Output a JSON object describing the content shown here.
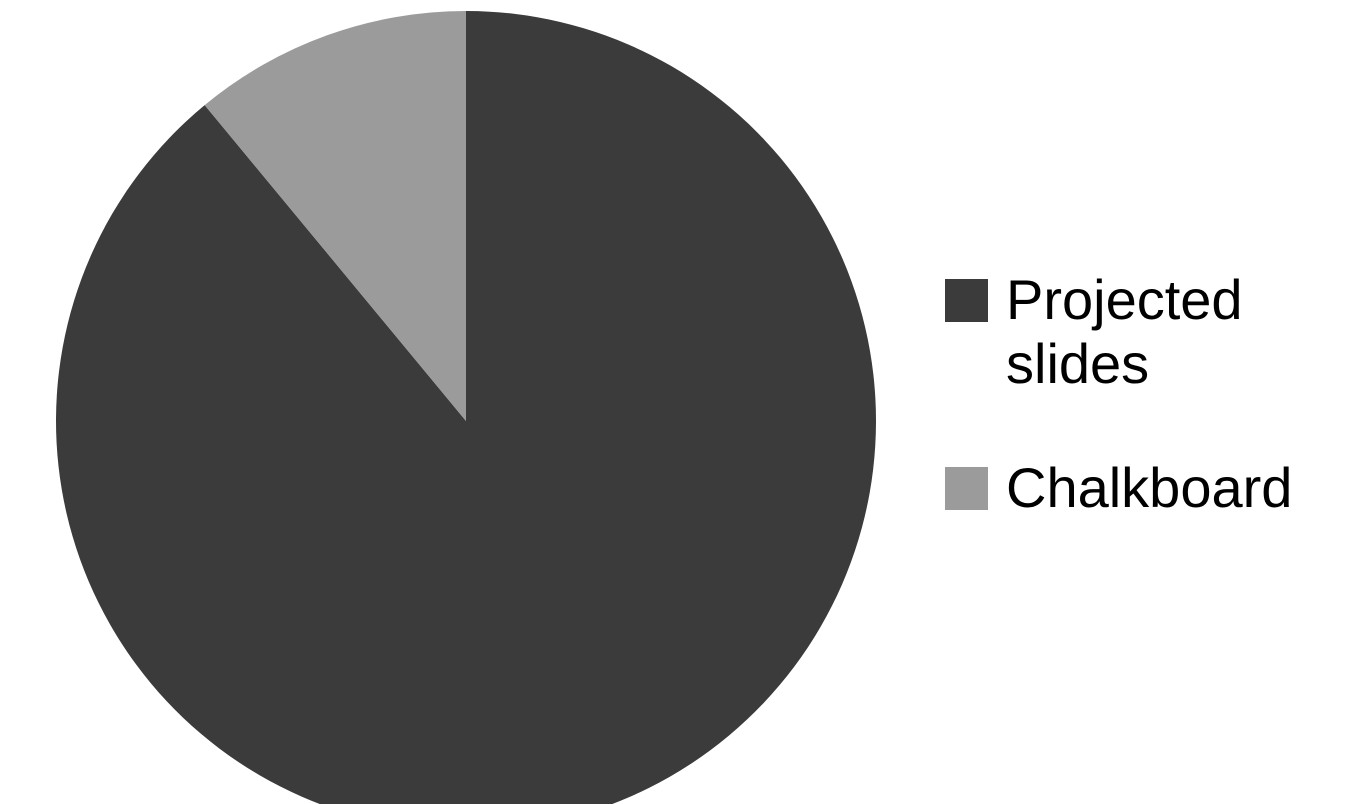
{
  "chart_data": {
    "type": "pie",
    "title": "",
    "start_angle_deg": 0,
    "direction": "clockwise",
    "slices": [
      {
        "label": "Projected slides",
        "value": 89,
        "color": "#3b3b3b"
      },
      {
        "label": "Chalkboard",
        "value": 11,
        "color": "#9b9b9b"
      }
    ],
    "legend_position": "right"
  }
}
